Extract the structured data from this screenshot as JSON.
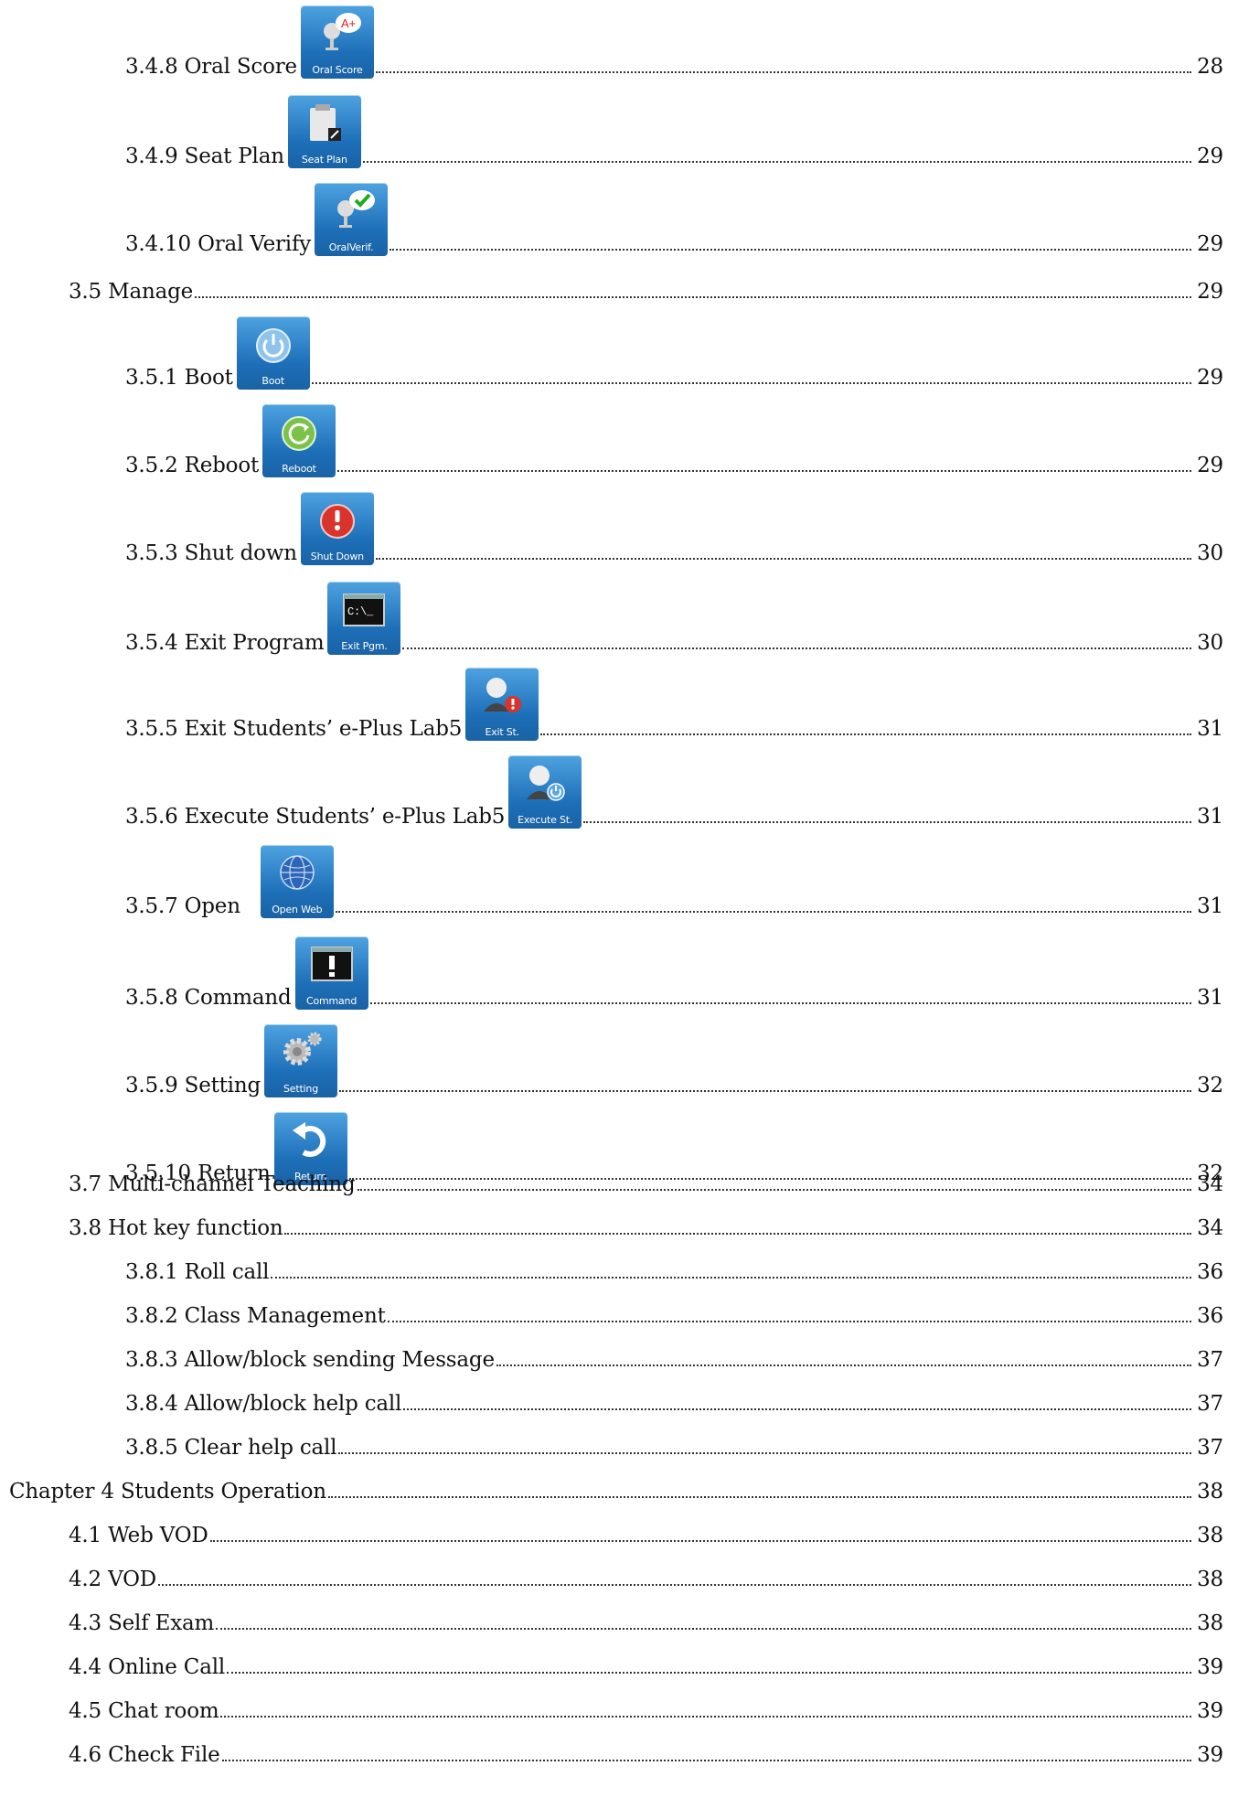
{
  "toc": [
    {
      "label": "3.4.8 Oral Score",
      "page": "28",
      "icon": "oral-score-icon",
      "caption": "Oral Score"
    },
    {
      "label": "3.4.9 Seat Plan",
      "page": "29",
      "icon": "seat-plan-icon",
      "caption": "Seat Plan"
    },
    {
      "label": "3.4.10 Oral Verify",
      "page": "29",
      "icon": "oral-verify-icon",
      "caption": "OralVerif."
    },
    {
      "label": "3.5 Manage",
      "page": "29"
    },
    {
      "label": "3.5.1 Boot",
      "page": "29",
      "icon": "boot-icon",
      "caption": "Boot"
    },
    {
      "label": "3.5.2 Reboot",
      "page": "29",
      "icon": "reboot-icon",
      "caption": "Reboot"
    },
    {
      "label": "3.5.3 Shut down",
      "page": "30",
      "icon": "shut-down-icon",
      "caption": "Shut Down"
    },
    {
      "label": "3.5.4 Exit Program",
      "page": "30",
      "icon": "exit-program-icon",
      "caption": "Exit Pgm."
    },
    {
      "label": "3.5.5 Exit Students’ e-Plus Lab5",
      "page": "31",
      "icon": "exit-students-icon",
      "caption": "Exit St."
    },
    {
      "label": "3.5.6 Execute Students’ e-Plus Lab5",
      "page": "31",
      "icon": "execute-students-icon",
      "caption": "Execute St."
    },
    {
      "label": "3.5.7 Open",
      "page": "31",
      "icon": "open-web-icon",
      "caption": "Open Web"
    },
    {
      "label": "3.5.8 Command",
      "page": "31",
      "icon": "command-icon",
      "caption": "Command"
    },
    {
      "label": "3.5.9 Setting",
      "page": "32",
      "icon": "setting-icon",
      "caption": "Setting"
    },
    {
      "label": "3.5.10 Return",
      "page": "32",
      "icon": "return-icon",
      "caption": "Return"
    },
    {
      "label": "3.7 Multi-channel Teaching",
      "page": "34"
    },
    {
      "label": "3.8 Hot key function",
      "page": "34"
    },
    {
      "label": "3.8.1 Roll call",
      "page": "36"
    },
    {
      "label": "3.8.2 Class Management",
      "page": "36"
    },
    {
      "label": "3.8.3 Allow/block sending Message",
      "page": "37"
    },
    {
      "label": "3.8.4 Allow/block help call",
      "page": "37"
    },
    {
      "label": "3.8.5 Clear help call",
      "page": "37"
    },
    {
      "label": "Chapter 4 Students Operation",
      "page": "38"
    },
    {
      "label": "4.1 Web VOD",
      "page": "38"
    },
    {
      "label": "4.2 VOD",
      "page": "38"
    },
    {
      "label": "4.3 Self Exam",
      "page": "38"
    },
    {
      "label": "4.4 Online Call",
      "page": "39"
    },
    {
      "label": "4.5 Chat room",
      "page": "39"
    },
    {
      "label": "4.6 Check File",
      "page": "39"
    }
  ]
}
